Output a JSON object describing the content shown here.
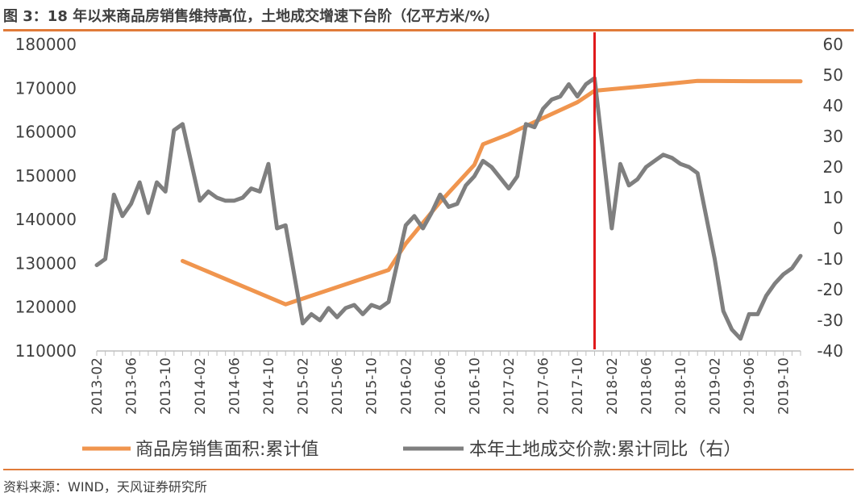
{
  "figure": {
    "title": "图 3：18 年以来商品房销售维持高位，土地成交增速下台阶（亿平方米/%）",
    "source": "资料来源：WIND，天风证券研究所"
  },
  "colors": {
    "orange": "#f0954e",
    "gray": "#7f7f7f",
    "marker": "#e0191b",
    "accent_rule": "#e07b39"
  },
  "chart_data": {
    "type": "line",
    "x_labels": [
      "2013-02",
      "2013-06",
      "2013-10",
      "2014-02",
      "2014-06",
      "2014-10",
      "2015-02",
      "2015-06",
      "2015-10",
      "2016-02",
      "2016-06",
      "2016-10",
      "2017-02",
      "2017-06",
      "2017-10",
      "2018-02",
      "2018-06",
      "2018-10",
      "2019-02",
      "2019-06",
      "2019-10"
    ],
    "x_range": [
      "2013-02",
      "2019-12"
    ],
    "y_left": {
      "min": 110000,
      "max": 180000,
      "ticks": [
        110000,
        120000,
        130000,
        140000,
        150000,
        160000,
        170000,
        180000
      ]
    },
    "y_right": {
      "min": -40,
      "max": 60,
      "ticks": [
        -40,
        -30,
        -20,
        -10,
        0,
        10,
        20,
        30,
        40,
        50,
        60
      ]
    },
    "vertical_marker": "2017-12",
    "series": [
      {
        "name": "商品房销售面积:累计值",
        "axis": "left",
        "color": "#f0954e",
        "points": [
          [
            "2013-12",
            130551
          ],
          [
            "2014-12",
            120649
          ],
          [
            "2015-12",
            128495
          ],
          [
            "2016-02",
            134500
          ],
          [
            "2016-06",
            144000
          ],
          [
            "2016-10",
            152500
          ],
          [
            "2016-11",
            157200
          ],
          [
            "2017-02",
            159500
          ],
          [
            "2017-06",
            163200
          ],
          [
            "2017-10",
            166800
          ],
          [
            "2017-12",
            169408
          ],
          [
            "2018-06",
            170500
          ],
          [
            "2018-12",
            171654
          ],
          [
            "2019-06",
            171600
          ],
          [
            "2019-12",
            171558
          ]
        ]
      },
      {
        "name": "本年土地成交价款:累计同比（右）",
        "axis": "right",
        "color": "#7f7f7f",
        "points": [
          [
            "2013-02",
            -12
          ],
          [
            "2013-03",
            -10
          ],
          [
            "2013-04",
            11
          ],
          [
            "2013-05",
            4
          ],
          [
            "2013-06",
            8
          ],
          [
            "2013-07",
            15
          ],
          [
            "2013-08",
            5
          ],
          [
            "2013-09",
            15
          ],
          [
            "2013-10",
            12
          ],
          [
            "2013-11",
            32
          ],
          [
            "2013-12",
            34
          ],
          [
            "2014-02",
            9
          ],
          [
            "2014-03",
            12
          ],
          [
            "2014-04",
            10
          ],
          [
            "2014-05",
            9
          ],
          [
            "2014-06",
            9
          ],
          [
            "2014-07",
            10
          ],
          [
            "2014-08",
            13
          ],
          [
            "2014-09",
            12
          ],
          [
            "2014-10",
            21
          ],
          [
            "2014-11",
            0
          ],
          [
            "2014-12",
            1
          ],
          [
            "2015-02",
            -31
          ],
          [
            "2015-03",
            -28
          ],
          [
            "2015-04",
            -30
          ],
          [
            "2015-05",
            -26
          ],
          [
            "2015-06",
            -29
          ],
          [
            "2015-07",
            -26
          ],
          [
            "2015-08",
            -25
          ],
          [
            "2015-09",
            -28
          ],
          [
            "2015-10",
            -25
          ],
          [
            "2015-11",
            -26
          ],
          [
            "2015-12",
            -24
          ],
          [
            "2016-02",
            1
          ],
          [
            "2016-03",
            4
          ],
          [
            "2016-04",
            0
          ],
          [
            "2016-05",
            5
          ],
          [
            "2016-06",
            11
          ],
          [
            "2016-07",
            7
          ],
          [
            "2016-08",
            8
          ],
          [
            "2016-09",
            14
          ],
          [
            "2016-10",
            17
          ],
          [
            "2016-11",
            22
          ],
          [
            "2016-12",
            20
          ],
          [
            "2017-02",
            13
          ],
          [
            "2017-03",
            17
          ],
          [
            "2017-04",
            34
          ],
          [
            "2017-05",
            33
          ],
          [
            "2017-06",
            39
          ],
          [
            "2017-07",
            42
          ],
          [
            "2017-08",
            43
          ],
          [
            "2017-09",
            47
          ],
          [
            "2017-10",
            43
          ],
          [
            "2017-11",
            47
          ],
          [
            "2017-12",
            49
          ],
          [
            "2018-02",
            0
          ],
          [
            "2018-03",
            21
          ],
          [
            "2018-04",
            14
          ],
          [
            "2018-05",
            16
          ],
          [
            "2018-06",
            20
          ],
          [
            "2018-07",
            22
          ],
          [
            "2018-08",
            24
          ],
          [
            "2018-09",
            23
          ],
          [
            "2018-10",
            21
          ],
          [
            "2018-11",
            20
          ],
          [
            "2018-12",
            18
          ],
          [
            "2019-02",
            -10
          ],
          [
            "2019-03",
            -27
          ],
          [
            "2019-04",
            -33
          ],
          [
            "2019-05",
            -36
          ],
          [
            "2019-06",
            -28
          ],
          [
            "2019-07",
            -28
          ],
          [
            "2019-08",
            -22
          ],
          [
            "2019-09",
            -18
          ],
          [
            "2019-10",
            -15
          ],
          [
            "2019-11",
            -13
          ],
          [
            "2019-12",
            -9
          ]
        ]
      }
    ]
  }
}
